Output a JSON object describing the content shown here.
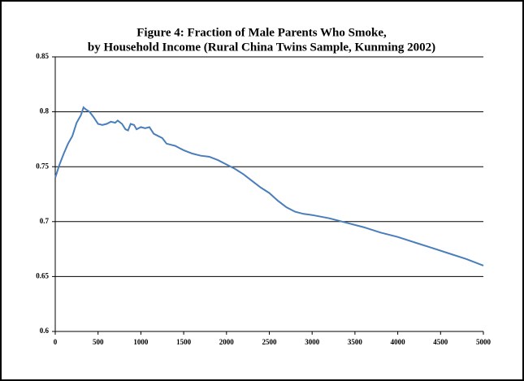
{
  "chart_data": {
    "type": "line",
    "title": [
      "Figure 4: Fraction of Male Parents Who Smoke,",
      "by Household Income (Rural China Twins Sample, Kunming 2002)"
    ],
    "x": [
      0,
      50,
      100,
      150,
      200,
      250,
      300,
      330,
      360,
      400,
      450,
      500,
      550,
      600,
      650,
      700,
      730,
      780,
      820,
      850,
      880,
      920,
      950,
      1000,
      1050,
      1100,
      1150,
      1200,
      1250,
      1300,
      1350,
      1400,
      1450,
      1500,
      1600,
      1700,
      1800,
      1900,
      2000,
      2100,
      2200,
      2300,
      2400,
      2500,
      2600,
      2700,
      2800,
      2900,
      3000,
      3200,
      3400,
      3600,
      3800,
      4000,
      4200,
      4400,
      4600,
      4800,
      5000
    ],
    "values": [
      0.74,
      0.752,
      0.762,
      0.771,
      0.778,
      0.79,
      0.797,
      0.804,
      0.802,
      0.8,
      0.795,
      0.789,
      0.788,
      0.789,
      0.791,
      0.79,
      0.792,
      0.789,
      0.784,
      0.783,
      0.789,
      0.788,
      0.784,
      0.786,
      0.785,
      0.786,
      0.78,
      0.778,
      0.776,
      0.771,
      0.77,
      0.769,
      0.767,
      0.765,
      0.762,
      0.76,
      0.759,
      0.756,
      0.752,
      0.748,
      0.743,
      0.737,
      0.731,
      0.726,
      0.719,
      0.713,
      0.709,
      0.707,
      0.706,
      0.703,
      0.699,
      0.695,
      0.69,
      0.686,
      0.681,
      0.676,
      0.671,
      0.666,
      0.66
    ],
    "color": "#4a7ebb",
    "xlim": [
      0,
      5000
    ],
    "xticks": [
      0,
      500,
      1000,
      1500,
      2000,
      2500,
      3000,
      3500,
      4000,
      4500,
      5000
    ],
    "ylim": [
      0.6,
      0.85
    ],
    "yticks": [
      0.6,
      0.65,
      0.7,
      0.75,
      0.8,
      0.85
    ],
    "grid": true
  }
}
